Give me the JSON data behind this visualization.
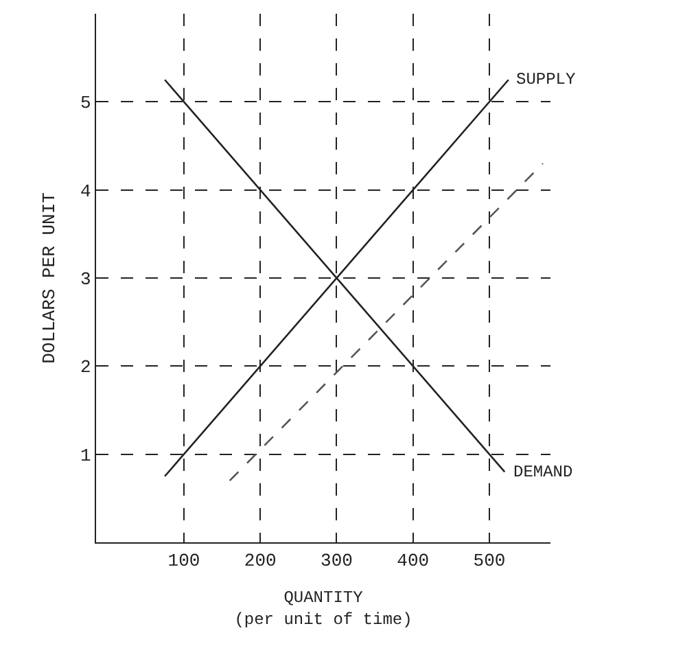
{
  "chart_data": {
    "type": "line",
    "xlabel": "QUANTITY\n(per unit of time)",
    "ylabel": "DOLLARS PER UNIT",
    "series": [
      {
        "name": "SUPPLY",
        "color": "#222222",
        "x": [
          75,
          525
        ],
        "values": [
          0.75,
          5.25
        ]
      },
      {
        "name": "DEMAND",
        "color": "#222222",
        "x": [
          75,
          520
        ],
        "values": [
          5.25,
          0.8
        ]
      },
      {
        "color": "#555555",
        "x": [
          160,
          570
        ],
        "values": [
          0.7,
          4.3
        ],
        "line_style": "dashed"
      }
    ],
    "xlim": [
      -15,
      580
    ],
    "ylim": [
      0,
      6
    ],
    "xticks": [
      100,
      200,
      300,
      400,
      500
    ],
    "yticks": [
      1,
      2,
      3,
      4,
      5
    ],
    "grid": true,
    "legend": false,
    "marker": "none",
    "line_style": "solid"
  }
}
